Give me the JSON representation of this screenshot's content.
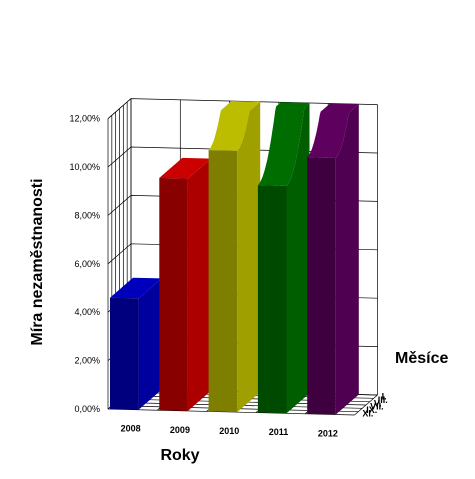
{
  "chart_data": {
    "type": "3d-area",
    "ylabel": "Míra nezaměstnanosti",
    "xlabel": "Roky",
    "zlabel": "Měsíce",
    "yticks": [
      "0,00%",
      "2,00%",
      "4,00%",
      "6,00%",
      "8,00%",
      "10,00%",
      "12,00%"
    ],
    "ylim": [
      0,
      12
    ],
    "categories": [
      "2008",
      "2009",
      "2010",
      "2011",
      "2012"
    ],
    "depth_labels": [
      "I.",
      "III.",
      "V.",
      "VII.",
      "IX.",
      "XI."
    ],
    "grid": true,
    "series": [
      {
        "color": "#0000cc",
        "front_value": 4.6
      },
      {
        "color": "#dd0000",
        "front_value": 9.6
      },
      {
        "color": "#cccc00",
        "front_value": 10.8
      },
      {
        "color": "#007700",
        "front_value": 9.4
      },
      {
        "color": "#660066",
        "front_value": 10.6
      }
    ]
  }
}
